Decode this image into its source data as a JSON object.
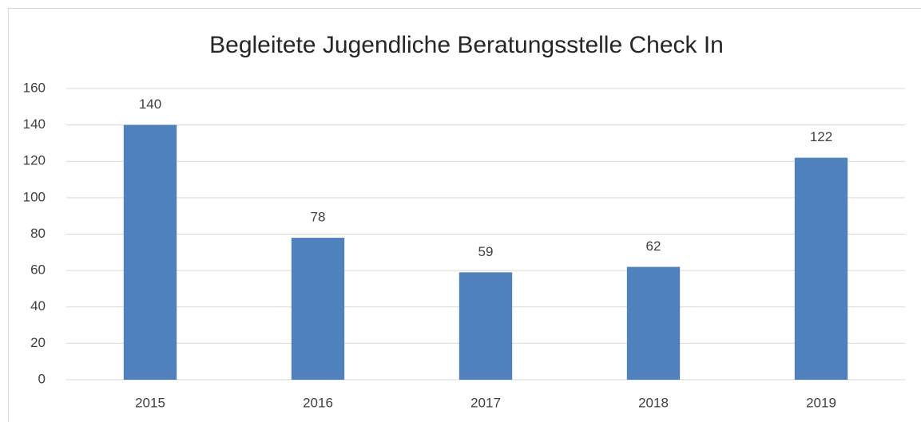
{
  "chart_data": {
    "type": "bar",
    "title": "Begleitete Jugendliche Beratungsstelle Check In",
    "categories": [
      "2015",
      "2016",
      "2017",
      "2018",
      "2019"
    ],
    "values": [
      140,
      78,
      59,
      62,
      122
    ],
    "color": "#4f81bd",
    "ylim": [
      0,
      160
    ],
    "yticks": [
      0,
      20,
      40,
      60,
      80,
      100,
      120,
      140,
      160
    ],
    "grid": true
  }
}
